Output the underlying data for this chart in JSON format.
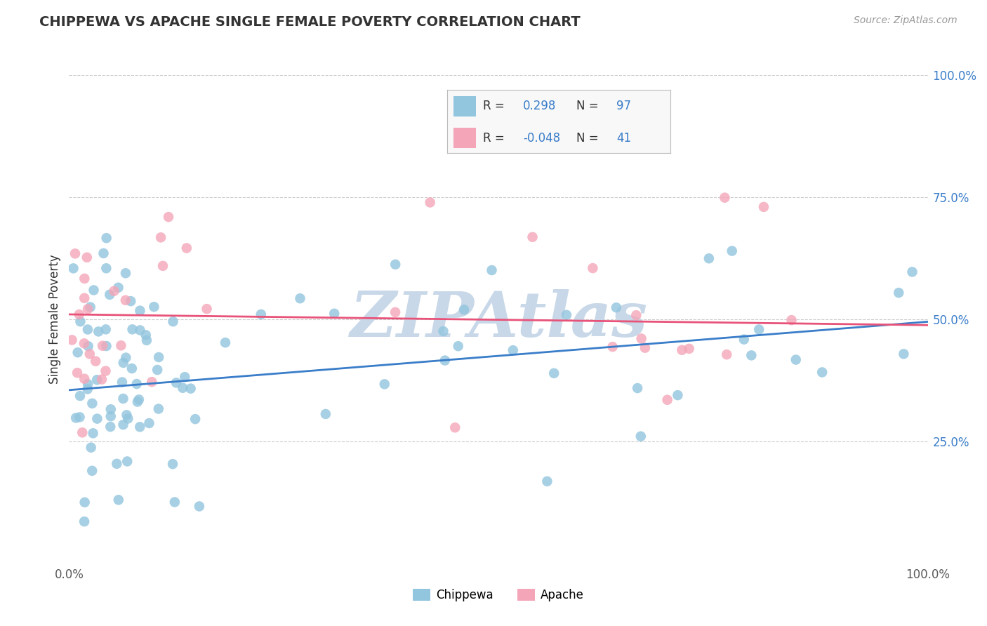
{
  "title": "CHIPPEWA VS APACHE SINGLE FEMALE POVERTY CORRELATION CHART",
  "source": "Source: ZipAtlas.com",
  "ylabel": "Single Female Poverty",
  "chippewa_R": 0.298,
  "chippewa_N": 97,
  "apache_R": -0.048,
  "apache_N": 41,
  "chippewa_color": "#92c5de",
  "apache_color": "#f4a6b8",
  "chippewa_line_color": "#3a7dc9",
  "apache_line_color": "#e8537a",
  "background_color": "#ffffff",
  "grid_color": "#cccccc",
  "watermark_color": "#c8d8e8",
  "text_color_dark": "#333333",
  "text_color_blue": "#3a7dc9",
  "text_color_axis": "#5a5a5a",
  "xlim": [
    0.0,
    1.0
  ],
  "ylim": [
    0.0,
    1.0
  ],
  "chip_line_x0": 0.0,
  "chip_line_y0": 0.355,
  "chip_line_x1": 1.0,
  "chip_line_y1": 0.495,
  "apac_line_x0": 0.0,
  "apac_line_y0": 0.51,
  "apac_line_x1": 1.0,
  "apac_line_y1": 0.488
}
